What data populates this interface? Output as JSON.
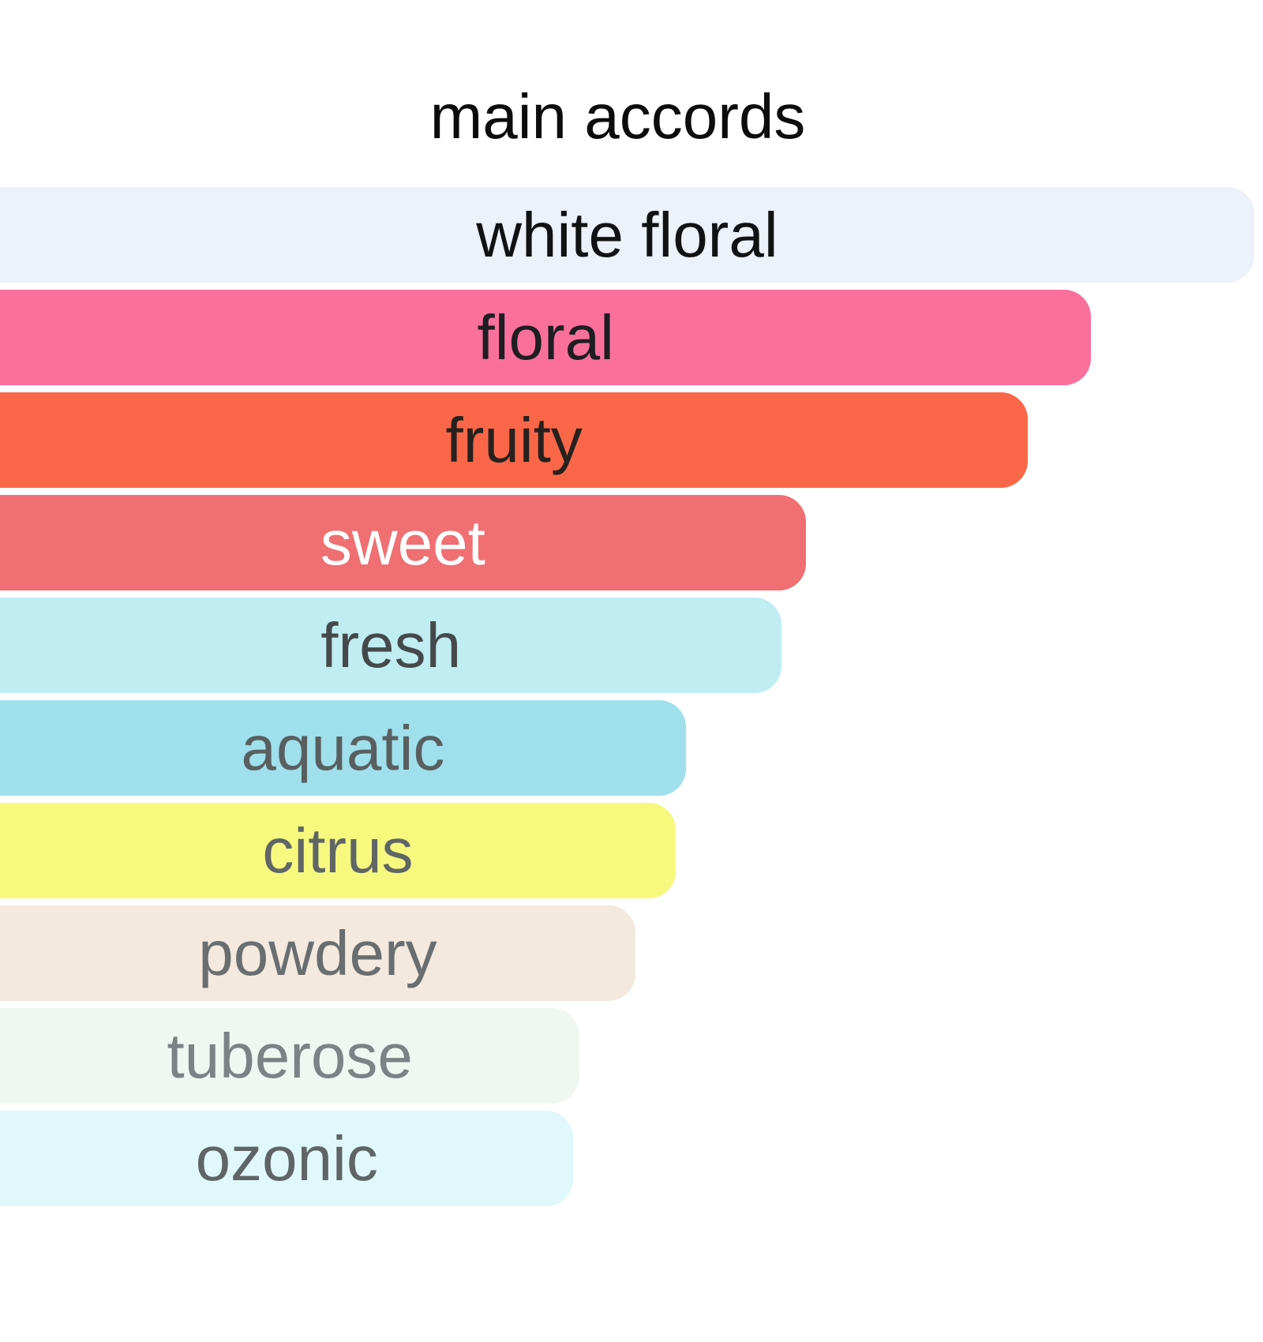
{
  "page": {
    "background_color": "#ffffff"
  },
  "chart_data": {
    "type": "bar",
    "orientation": "horizontal",
    "title": "main accords",
    "title_color": "#0c0c0c",
    "xlim": [
      0,
      100
    ],
    "grid": false,
    "legend": false,
    "bars": [
      {
        "label": "white floral",
        "value": 99.3,
        "color": "#ECF1FA",
        "text_color": "#111213"
      },
      {
        "label": "floral",
        "value": 86.4,
        "color": "#FA709D",
        "text_color": "#1e1e20"
      },
      {
        "label": "fruity",
        "value": 81.4,
        "color": "#FA6748",
        "text_color": "#26211e"
      },
      {
        "label": "sweet",
        "value": 63.8,
        "color": "#F06F72",
        "text_color": "#ffffff"
      },
      {
        "label": "fresh",
        "value": 61.9,
        "color": "#BFEDF2",
        "text_color": "#45494b"
      },
      {
        "label": "aquatic",
        "value": 54.3,
        "color": "#9FE0EC",
        "text_color": "#595f60"
      },
      {
        "label": "citrus",
        "value": 53.5,
        "color": "#F6F97E",
        "text_color": "#606566"
      },
      {
        "label": "powdery",
        "value": 50.3,
        "color": "#F3E9DF",
        "text_color": "#696e70"
      },
      {
        "label": "tuberose",
        "value": 45.9,
        "color": "#F0F7F2",
        "text_color": "#7d8284"
      },
      {
        "label": "ozonic",
        "value": 45.4,
        "color": "#E0F8FA",
        "text_color": "#5f6567"
      }
    ]
  }
}
